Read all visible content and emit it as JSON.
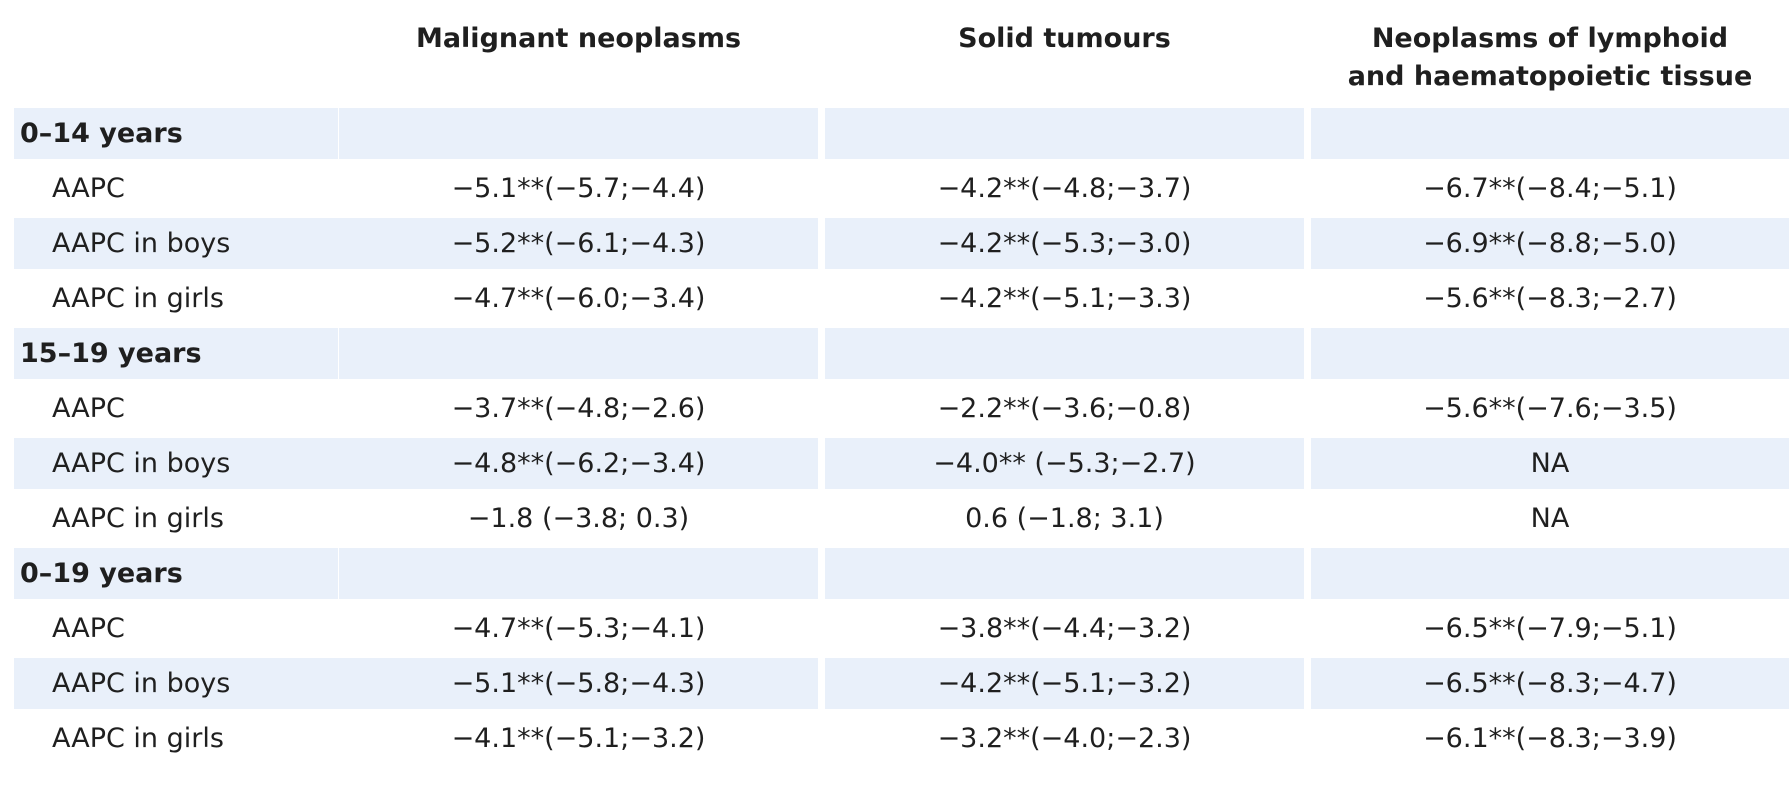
{
  "columns": [
    "",
    "Malignant neoplasms",
    "Solid tumours",
    "Neoplasms of lymphoid",
    "and haematopoietic tissue"
  ],
  "groups": [
    {
      "label": "0–14 years",
      "rows": [
        {
          "label": "AAPC",
          "malignant": "−5.1**(−5.7;−4.4)",
          "solid": "−4.2**(−4.8;−3.7)",
          "lymphoid": "−6.7**(−8.4;−5.1)"
        },
        {
          "label": "AAPC in boys",
          "malignant": "−5.2**(−6.1;−4.3)",
          "solid": "−4.2**(−5.3;−3.0)",
          "lymphoid": "−6.9**(−8.8;−5.0)"
        },
        {
          "label": "AAPC in girls",
          "malignant": "−4.7**(−6.0;−3.4)",
          "solid": "−4.2**(−5.1;−3.3)",
          "lymphoid": "−5.6**(−8.3;−2.7)"
        }
      ]
    },
    {
      "label": "15–19 years",
      "rows": [
        {
          "label": "AAPC",
          "malignant": "−3.7**(−4.8;−2.6)",
          "solid": "−2.2**(−3.6;−0.8)",
          "lymphoid": "−5.6**(−7.6;−3.5)"
        },
        {
          "label": "AAPC in boys",
          "malignant": "−4.8**(−6.2;−3.4)",
          "solid": "−4.0** (−5.3;−2.7)",
          "lymphoid": "NA"
        },
        {
          "label": "AAPC in girls",
          "malignant": "−1.8 (−3.8; 0.3)",
          "solid": "0.6 (−1.8; 3.1)",
          "lymphoid": "NA"
        }
      ]
    },
    {
      "label": "0–19 years",
      "rows": [
        {
          "label": "AAPC",
          "malignant": "−4.7**(−5.3;−4.1)",
          "solid": "−3.8**(−4.4;−3.2)",
          "lymphoid": "−6.5**(−7.9;−5.1)"
        },
        {
          "label": "AAPC in boys",
          "malignant": "−5.1**(−5.8;−4.3)",
          "solid": "−4.2**(−5.1;−3.2)",
          "lymphoid": "−6.5**(−8.3;−4.7)"
        },
        {
          "label": "AAPC in girls",
          "malignant": "−4.1**(−5.1;−3.2)",
          "solid": "−3.2**(−4.0;−2.3)",
          "lymphoid": "−6.1**(−8.3;−3.9)"
        }
      ]
    }
  ],
  "colors": {
    "row_shade": "#e9f0fa",
    "text": "#1f1f1f",
    "background": "#ffffff"
  }
}
